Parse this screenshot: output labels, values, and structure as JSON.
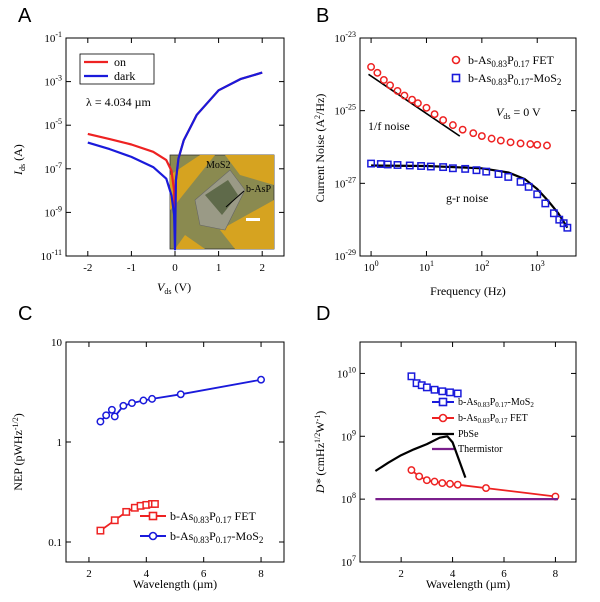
{
  "panel_letters": [
    "A",
    "B",
    "C",
    "D"
  ],
  "colors": {
    "red": "#ee2222",
    "blue": "#1a1adb",
    "black": "#000000",
    "purple": "#7a1f8c",
    "inset_bg": "#8a8a50"
  },
  "chart_data": [
    {
      "panel": "A",
      "type": "line",
      "xlabel_main": "V",
      "xlabel_sub": "ds",
      "xlabel_unit": " (V)",
      "ylabel_main": "I",
      "ylabel_sub": "ds",
      "ylabel_unit": " (A)",
      "xlim": [
        -2.5,
        2.5
      ],
      "ylim_log10": [
        -11,
        -1
      ],
      "log_y": true,
      "xticks": [
        "-2",
        "-1",
        "0",
        "1",
        "2"
      ],
      "yticks": [
        "10-11",
        "10-9",
        "10-7",
        "10-5",
        "10-3",
        "10-1"
      ],
      "annotation": "λ = 4.034 µm",
      "inset_labels": [
        "MoS2",
        "b-AsP"
      ],
      "series": [
        {
          "name": "on",
          "color": "#ee2222",
          "x": [
            -2,
            -1.5,
            -1,
            -0.5,
            -0.2,
            -0.08,
            -0.02,
            0.0,
            0.02,
            0.08,
            0.2,
            0.5,
            1,
            1.5,
            2
          ],
          "y": [
            4e-06,
            2.3e-06,
            1.3e-06,
            6e-07,
            2.5e-07,
            8e-08,
            1e-08,
            1e-10,
            3e-08,
            3e-07,
            2e-06,
            3e-05,
            0.0004,
            0.0013,
            0.0026
          ]
        },
        {
          "name": "dark",
          "color": "#1a1adb",
          "x": [
            -2,
            -1.5,
            -1,
            -0.5,
            -0.2,
            -0.08,
            -0.02,
            0.0,
            0.02,
            0.08,
            0.2,
            0.5,
            1,
            1.5,
            2
          ],
          "y": [
            1.6e-06,
            8e-07,
            3.5e-07,
            1.2e-07,
            3.5e-08,
            6e-09,
            8e-10,
            2e-11,
            3e-08,
            3e-07,
            2e-06,
            3e-05,
            0.0004,
            0.0013,
            0.0026
          ]
        }
      ]
    },
    {
      "panel": "B",
      "type": "scatter",
      "xlabel": "Frequency (Hz)",
      "ylabel_main": "Current Noise (A",
      "ylabel_sup": "2",
      "ylabel_end": "/Hz)",
      "xlim_log10": [
        -0.2,
        3.7
      ],
      "ylim_log10": [
        -29,
        -23
      ],
      "log_x": true,
      "log_y": true,
      "xticks": [
        "100",
        "101",
        "102",
        "103"
      ],
      "yticks": [
        "10-29",
        "10-27",
        "10-25",
        "10-23"
      ],
      "annotations": [
        "1/f noise",
        "g-r noise",
        "Vds = 0 V"
      ],
      "series": [
        {
          "name": "b-As0.83P0.17 FET",
          "marker": "circle",
          "color": "#ee2222",
          "x": [
            1,
            1.3,
            1.7,
            2.2,
            3,
            4,
            5.5,
            7,
            10,
            14,
            20,
            30,
            45,
            70,
            100,
            150,
            220,
            330,
            500,
            750,
            1000,
            1500
          ],
          "y": [
            1.6e-24,
            1.1e-24,
            7e-25,
            5e-25,
            3.5e-25,
            2.6e-25,
            2e-25,
            1.6e-25,
            1.2e-25,
            8e-26,
            5.5e-26,
            4e-26,
            3e-26,
            2.4e-26,
            2e-26,
            1.7e-26,
            1.5e-26,
            1.35e-26,
            1.25e-26,
            1.2e-26,
            1.15e-26,
            1.1e-26
          ]
        },
        {
          "name": "b-As0.83P0.17-MoS2",
          "marker": "square",
          "color": "#1a1adb",
          "x": [
            1,
            1.5,
            2,
            3,
            5,
            8,
            12,
            20,
            30,
            50,
            80,
            120,
            200,
            300,
            500,
            700,
            1000,
            1400,
            2000,
            2500,
            3000,
            3500
          ],
          "y": [
            3.5e-27,
            3.4e-27,
            3.3e-27,
            3.2e-27,
            3.1e-27,
            3e-27,
            2.9e-27,
            2.8e-27,
            2.6e-27,
            2.5e-27,
            2.3e-27,
            2.1e-27,
            1.8e-27,
            1.5e-27,
            1.1e-27,
            8e-28,
            5e-28,
            2.8e-28,
            1.5e-28,
            1e-28,
            8e-29,
            6e-29
          ]
        }
      ],
      "fit_lines": [
        {
          "name": "1/f guide",
          "color": "#000000",
          "x": [
            0.9,
            40
          ],
          "y": [
            1e-24,
            2e-26
          ]
        },
        {
          "name": "g-r fit",
          "color": "#000000",
          "x": [
            1,
            10,
            100,
            300,
            600,
            1000,
            1600,
            2400,
            3500
          ],
          "y": [
            3.1e-27,
            3e-27,
            2.6e-27,
            2e-27,
            1.3e-27,
            7e-28,
            3.2e-28,
            1.5e-28,
            6e-29
          ]
        }
      ]
    },
    {
      "panel": "C",
      "type": "line",
      "xlabel": "Wavelength (µm)",
      "ylabel_main": "NEP (pWHz",
      "ylabel_sup": "-1/2",
      "ylabel_end": ")",
      "xlim": [
        1.2,
        8.8
      ],
      "ylim_log10": [
        -1.2,
        1
      ],
      "log_y": true,
      "xticks": [
        "2",
        "4",
        "6",
        "8"
      ],
      "yticks": [
        "0.1",
        "1",
        "10"
      ],
      "series": [
        {
          "name": "b-As0.83P0.17 FET",
          "marker": "square",
          "color": "#ee2222",
          "x": [
            2.4,
            2.9,
            3.3,
            3.6,
            3.8,
            4.0,
            4.2,
            4.3
          ],
          "y": [
            0.13,
            0.165,
            0.2,
            0.22,
            0.23,
            0.235,
            0.24,
            0.24
          ]
        },
        {
          "name": "b-As0.83P0.17-MoS2",
          "marker": "circle",
          "color": "#1a1adb",
          "x": [
            2.4,
            2.6,
            2.8,
            2.9,
            3.2,
            3.5,
            3.9,
            4.2,
            5.2,
            8.0
          ],
          "y": [
            1.6,
            1.85,
            2.1,
            1.8,
            2.3,
            2.45,
            2.6,
            2.7,
            3.0,
            4.2
          ]
        }
      ]
    },
    {
      "panel": "D",
      "type": "line",
      "xlabel": "Wavelength (µm)",
      "ylabel_main": "D*",
      "ylabel_mid": " (cmHz",
      "ylabel_sup": "1/2",
      "ylabel_end": "W",
      "ylabel_sup2": "-1",
      "ylabel_close": ")",
      "xlim": [
        0.4,
        8.8
      ],
      "ylim_log10": [
        7,
        10.5
      ],
      "log_y": true,
      "xticks": [
        "2",
        "4",
        "6",
        "8"
      ],
      "yticks": [
        "107",
        "108",
        "109",
        "1010"
      ],
      "series": [
        {
          "name": "b-As0.83P0.17-MoS2",
          "marker": "square",
          "color": "#1a1adb",
          "x": [
            2.4,
            2.6,
            2.8,
            3.0,
            3.3,
            3.6,
            3.9,
            4.2
          ],
          "y": [
            9000000000.0,
            7000000000.0,
            6500000000.0,
            6000000000.0,
            5500000000.0,
            5200000000.0,
            5000000000.0,
            4800000000.0
          ]
        },
        {
          "name": "b-As0.83P0.17 FET",
          "marker": "circle",
          "color": "#ee2222",
          "x": [
            2.4,
            2.7,
            3.0,
            3.3,
            3.6,
            3.9,
            4.2,
            5.3,
            8.0
          ],
          "y": [
            290000000.0,
            230000000.0,
            200000000.0,
            190000000.0,
            180000000.0,
            175000000.0,
            170000000.0,
            150000000.0,
            110000000.0
          ]
        },
        {
          "name": "PbSe",
          "marker": "none",
          "color": "#000000",
          "x": [
            1,
            1.5,
            2.0,
            2.5,
            3.0,
            3.5,
            3.8,
            4.0,
            4.5
          ],
          "y": [
            280000000.0,
            380000000.0,
            500000000.0,
            620000000.0,
            750000000.0,
            950000000.0,
            1000000000.0,
            800000000.0,
            220000000.0
          ]
        },
        {
          "name": "Thermistor",
          "marker": "none",
          "color": "#7a1f8c",
          "x": [
            1,
            8.1
          ],
          "y": [
            100000000.0,
            100000000.0
          ]
        }
      ]
    }
  ]
}
